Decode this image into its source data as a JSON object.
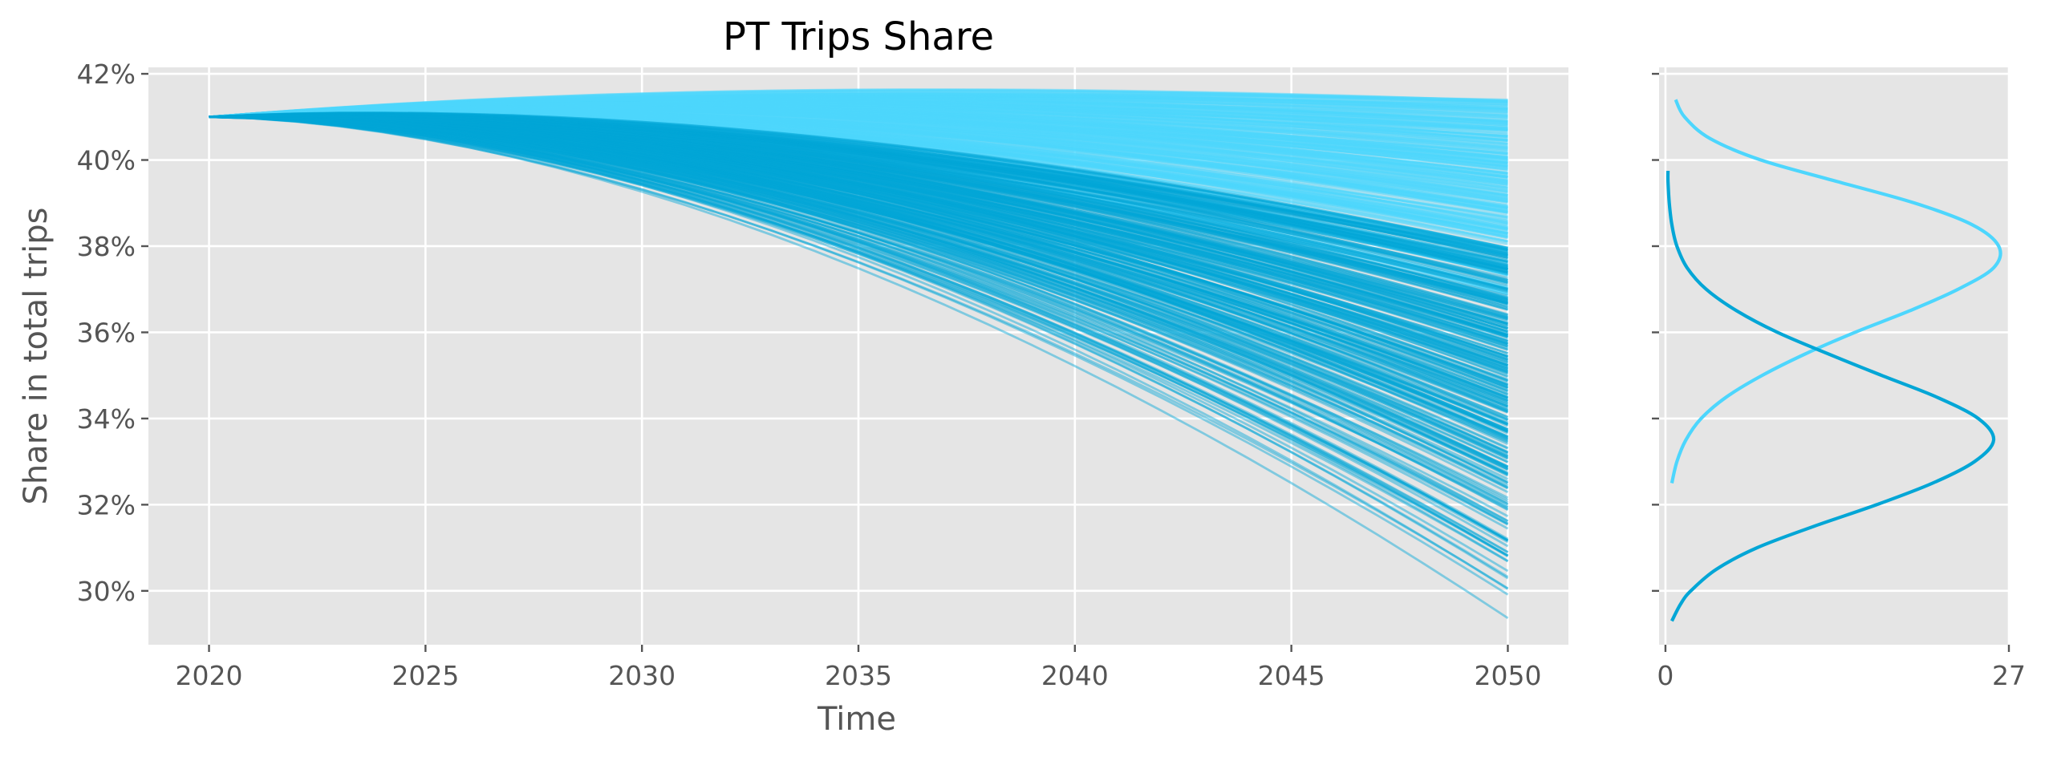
{
  "chart_data": [
    {
      "type": "line",
      "title": "PT Trips Share",
      "xlabel": "Time",
      "ylabel": "Share in total trips",
      "xlim": [
        2018.6,
        2051.4
      ],
      "ylim": [
        0.2875,
        0.4215
      ],
      "x_ticks": [
        2020,
        2025,
        2030,
        2035,
        2040,
        2045,
        2050
      ],
      "x_tick_labels": [
        "2020",
        "2025",
        "2030",
        "2035",
        "2040",
        "2045",
        "2050"
      ],
      "y_ticks": [
        0.3,
        0.32,
        0.34,
        0.36,
        0.38,
        0.4,
        0.42
      ],
      "y_tick_labels": [
        "30%",
        "32%",
        "34%",
        "36%",
        "38%",
        "40%",
        "42%"
      ],
      "grid": true,
      "legend": "none",
      "x_start": 2020,
      "x_end": 2050,
      "start_value": 0.41,
      "series_groups": [
        {
          "color": "#4dd6fd",
          "end_values_range": [
            0.368,
            0.414
          ],
          "peak_range": [
            0.4125,
            0.4165
          ],
          "description_count": 320
        },
        {
          "color": "#03a6d6",
          "end_values_range": [
            0.293,
            0.38
          ],
          "peak_range": [
            0.4095,
            0.4145
          ],
          "description_count": 320
        }
      ]
    },
    {
      "type": "density",
      "orientation": "horizontal",
      "xlim": [
        -0.5,
        27
      ],
      "x_ticks": [
        0,
        27
      ],
      "x_tick_labels": [
        "0",
        "27"
      ],
      "ylim": [
        0.2875,
        0.4215
      ],
      "grid": true,
      "series": [
        {
          "color": "#4dd6fd",
          "y_range": [
            0.325,
            0.414
          ],
          "y": [
            0.325,
            0.33,
            0.335,
            0.34,
            0.345,
            0.35,
            0.355,
            0.36,
            0.365,
            0.37,
            0.375,
            0.38,
            0.385,
            0.39,
            0.395,
            0.4,
            0.405,
            0.41,
            0.414
          ],
          "density": [
            0.5,
            0.9,
            1.6,
            2.8,
            4.8,
            7.6,
            11.0,
            14.9,
            19.2,
            23.0,
            25.8,
            26.2,
            24.1,
            19.6,
            13.5,
            7.5,
            3.5,
            1.5,
            0.8
          ]
        },
        {
          "color": "#03a6d6",
          "y_range": [
            0.293,
            0.3975
          ],
          "y": [
            0.293,
            0.297,
            0.3,
            0.305,
            0.31,
            0.315,
            0.32,
            0.325,
            0.33,
            0.335,
            0.34,
            0.345,
            0.35,
            0.355,
            0.36,
            0.365,
            0.37,
            0.375,
            0.38,
            0.385,
            0.39,
            0.395,
            0.3975
          ],
          "density": [
            0.5,
            1.2,
            2.0,
            4.0,
            7.2,
            11.7,
            16.6,
            21.0,
            24.3,
            25.8,
            24.6,
            21.3,
            17.0,
            12.8,
            8.8,
            5.6,
            3.2,
            1.7,
            0.9,
            0.5,
            0.3,
            0.2,
            0.2
          ]
        }
      ]
    }
  ]
}
